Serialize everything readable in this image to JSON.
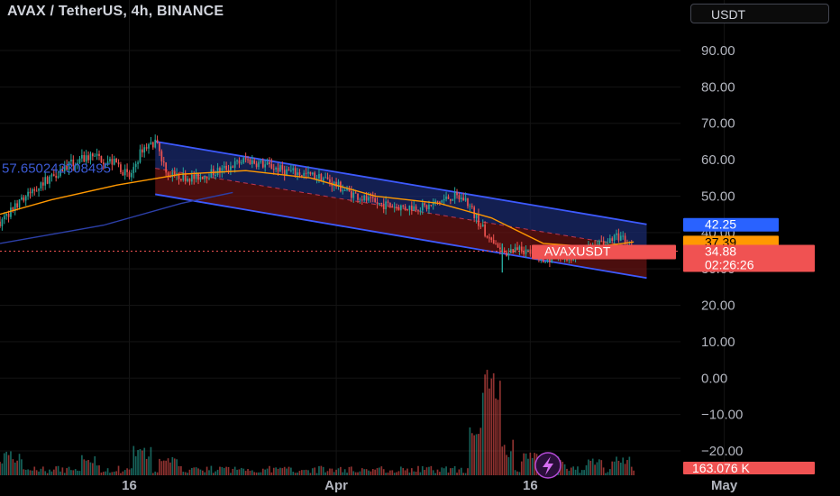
{
  "header": {
    "title": "AVAX / TetherUS, 4h, BINANCE",
    "currency_button": "USDT"
  },
  "colors": {
    "background": "#000000",
    "up_candle": "#26a69a",
    "down_candle": "#ef5350",
    "channel_line": "#3d5afe",
    "channel_upper_fill": "#1a2a6c",
    "channel_lower_fill": "#6b1414",
    "ma_line": "#ff9800",
    "slow_ma_line": "#2c3fa8"
  },
  "price_badges": {
    "channel_top": {
      "value": "42.25",
      "color": "#2962ff",
      "text_color": "#ffffff"
    },
    "ma": {
      "value": "37.39",
      "color": "#ff9800",
      "text_color": "#000000"
    },
    "symbol": {
      "label": "AVAXUSDT",
      "color": "#f05252"
    },
    "last_price": {
      "value": "34.88",
      "countdown": "02:26:26",
      "color": "#f05252"
    },
    "volume": {
      "value": "163.076 K",
      "color": "#f05252"
    }
  },
  "annotation": {
    "text": "57.650242308495"
  },
  "lightning_icon": "lightning-icon",
  "chart_data": {
    "type": "candlestick",
    "title": "AVAX / TetherUS, 4h, BINANCE",
    "ylim": [
      -25,
      100
    ],
    "y_ticks": [
      "90.00",
      "80.00",
      "70.00",
      "60.00",
      "50.00",
      "40.00",
      "30.00",
      "20.00",
      "10.00",
      "0.00",
      "−10.00",
      "−20.00"
    ],
    "y_tick_values": [
      90,
      80,
      70,
      60,
      50,
      40,
      30,
      20,
      10,
      0,
      -10,
      -20
    ],
    "x_ticks": [
      {
        "label": "16",
        "date": "2024-03-16"
      },
      {
        "label": "Apr",
        "date": "2024-04-01"
      },
      {
        "label": "16",
        "date": "2024-04-16"
      },
      {
        "label": "May",
        "date": "2024-05-01"
      }
    ],
    "xlim": [
      "2024-03-06",
      "2024-05-10"
    ],
    "last_date": "2024-04-24",
    "price_path": [
      [
        "2024-03-06",
        43
      ],
      [
        "2024-03-09",
        53
      ],
      [
        "2024-03-11",
        58
      ],
      [
        "2024-03-13",
        61
      ],
      [
        "2024-03-15",
        59
      ],
      [
        "2024-03-16",
        55
      ],
      [
        "2024-03-17",
        63
      ],
      [
        "2024-03-18",
        65
      ],
      [
        "2024-03-19",
        56
      ],
      [
        "2024-03-21",
        55
      ],
      [
        "2024-03-23",
        57
      ],
      [
        "2024-03-25",
        60
      ],
      [
        "2024-03-28",
        57
      ],
      [
        "2024-03-31",
        55
      ],
      [
        "2024-04-02",
        51
      ],
      [
        "2024-04-04",
        48
      ],
      [
        "2024-04-06",
        47
      ],
      [
        "2024-04-08",
        47
      ],
      [
        "2024-04-10",
        50
      ],
      [
        "2024-04-11",
        49
      ],
      [
        "2024-04-12",
        43
      ],
      [
        "2024-04-13",
        37
      ],
      [
        "2024-04-14",
        34
      ],
      [
        "2024-04-15",
        36
      ],
      [
        "2024-04-17",
        33
      ],
      [
        "2024-04-19",
        33
      ],
      [
        "2024-04-20",
        35
      ],
      [
        "2024-04-22",
        38
      ],
      [
        "2024-04-23",
        39
      ],
      [
        "2024-04-24",
        35
      ]
    ],
    "channel": {
      "start_date": "2024-03-18",
      "end_date": "2024-04-25",
      "upper": [
        65,
        42.25
      ],
      "middle": [
        57.65,
        35.5
      ],
      "lower": [
        50.5,
        27.5
      ]
    },
    "ma_series": [
      [
        "2024-03-06",
        45
      ],
      [
        "2024-03-10",
        49
      ],
      [
        "2024-03-15",
        53
      ],
      [
        "2024-03-20",
        56
      ],
      [
        "2024-03-25",
        57
      ],
      [
        "2024-03-30",
        55
      ],
      [
        "2024-04-04",
        50
      ],
      [
        "2024-04-09",
        48
      ],
      [
        "2024-04-13",
        44
      ],
      [
        "2024-04-17",
        37
      ],
      [
        "2024-04-21",
        36
      ],
      [
        "2024-04-24",
        37.39
      ]
    ],
    "slow_ma_series": [
      [
        "2024-03-06",
        37
      ],
      [
        "2024-03-14",
        42
      ],
      [
        "2024-03-20",
        48
      ],
      [
        "2024-03-24",
        51
      ]
    ],
    "volume_unit": "K",
    "last_volume": 163.076,
    "volume_spikes": [
      [
        "2024-03-06",
        150
      ],
      [
        "2024-03-07",
        250
      ],
      [
        "2024-03-13",
        200
      ],
      [
        "2024-03-17",
        280
      ],
      [
        "2024-03-19",
        180
      ],
      [
        "2024-04-12",
        500
      ],
      [
        "2024-04-13",
        1050
      ],
      [
        "2024-04-14",
        340
      ],
      [
        "2024-04-16",
        220
      ],
      [
        "2024-04-18",
        200
      ],
      [
        "2024-04-21",
        160
      ],
      [
        "2024-04-23",
        180
      ]
    ],
    "volume_max": 1200
  }
}
